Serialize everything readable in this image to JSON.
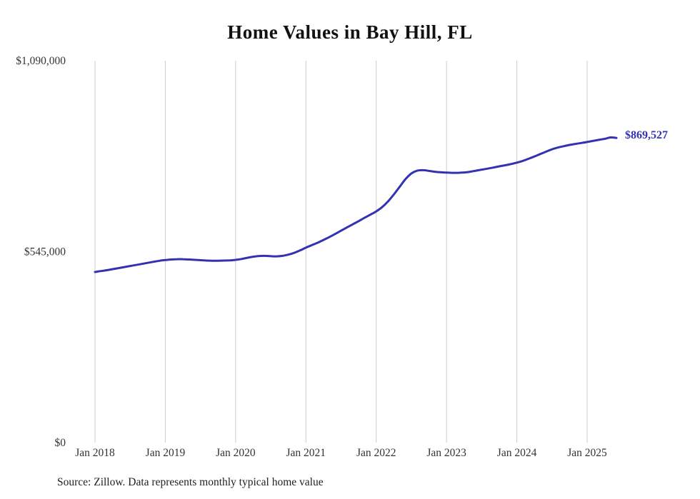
{
  "page": {
    "background": "#ffffff"
  },
  "title": "Home Values in Bay Hill, FL",
  "source_note": "Source: Zillow. Data represents monthly typical home value",
  "chart_data": {
    "type": "line",
    "title": "Home Values in Bay Hill, FL",
    "frequency": "monthly",
    "x_start": "Jan 2018",
    "x_end": "Jun 2025",
    "x_tick_labels": [
      "Jan 2018",
      "Jan 2019",
      "Jan 2020",
      "Jan 2021",
      "Jan 2022",
      "Jan 2023",
      "Jan 2024",
      "Jan 2025"
    ],
    "y_tick_labels": [
      "$0",
      "$545,000",
      "$1,090,000"
    ],
    "y_tick_values": [
      0,
      545000,
      1090000
    ],
    "ylim": [
      0,
      1090000
    ],
    "grid": "vertical",
    "legend": "none",
    "end_label": "$869,527",
    "line_color": "#3332b0",
    "series": [
      {
        "name": "Typical home value",
        "color": "#3332b0",
        "values": [
          487000,
          489500,
          492000,
          495000,
          498000,
          501000,
          504000,
          507000,
          510000,
          513000,
          516000,
          519000,
          521000,
          522500,
          523500,
          523500,
          522500,
          521500,
          520500,
          519500,
          519000,
          519000,
          519500,
          520000,
          521500,
          524000,
          527500,
          530500,
          532500,
          533000,
          532000,
          531500,
          533000,
          536500,
          541500,
          548500,
          556500,
          563500,
          570500,
          578500,
          586500,
          595500,
          605000,
          614000,
          623000,
          632000,
          641500,
          650500,
          660000,
          672000,
          688000,
          708000,
          730000,
          752000,
          768000,
          776000,
          777500,
          775500,
          773000,
          771500,
          770500,
          770000,
          770000,
          771000,
          773000,
          776000,
          779000,
          782000,
          785000,
          788500,
          791500,
          795000,
          799000,
          804000,
          810000,
          816500,
          823500,
          830500,
          837000,
          842000,
          846000,
          849500,
          852500,
          855000,
          858000,
          861000,
          864000,
          867000,
          871000,
          869527
        ]
      }
    ]
  }
}
